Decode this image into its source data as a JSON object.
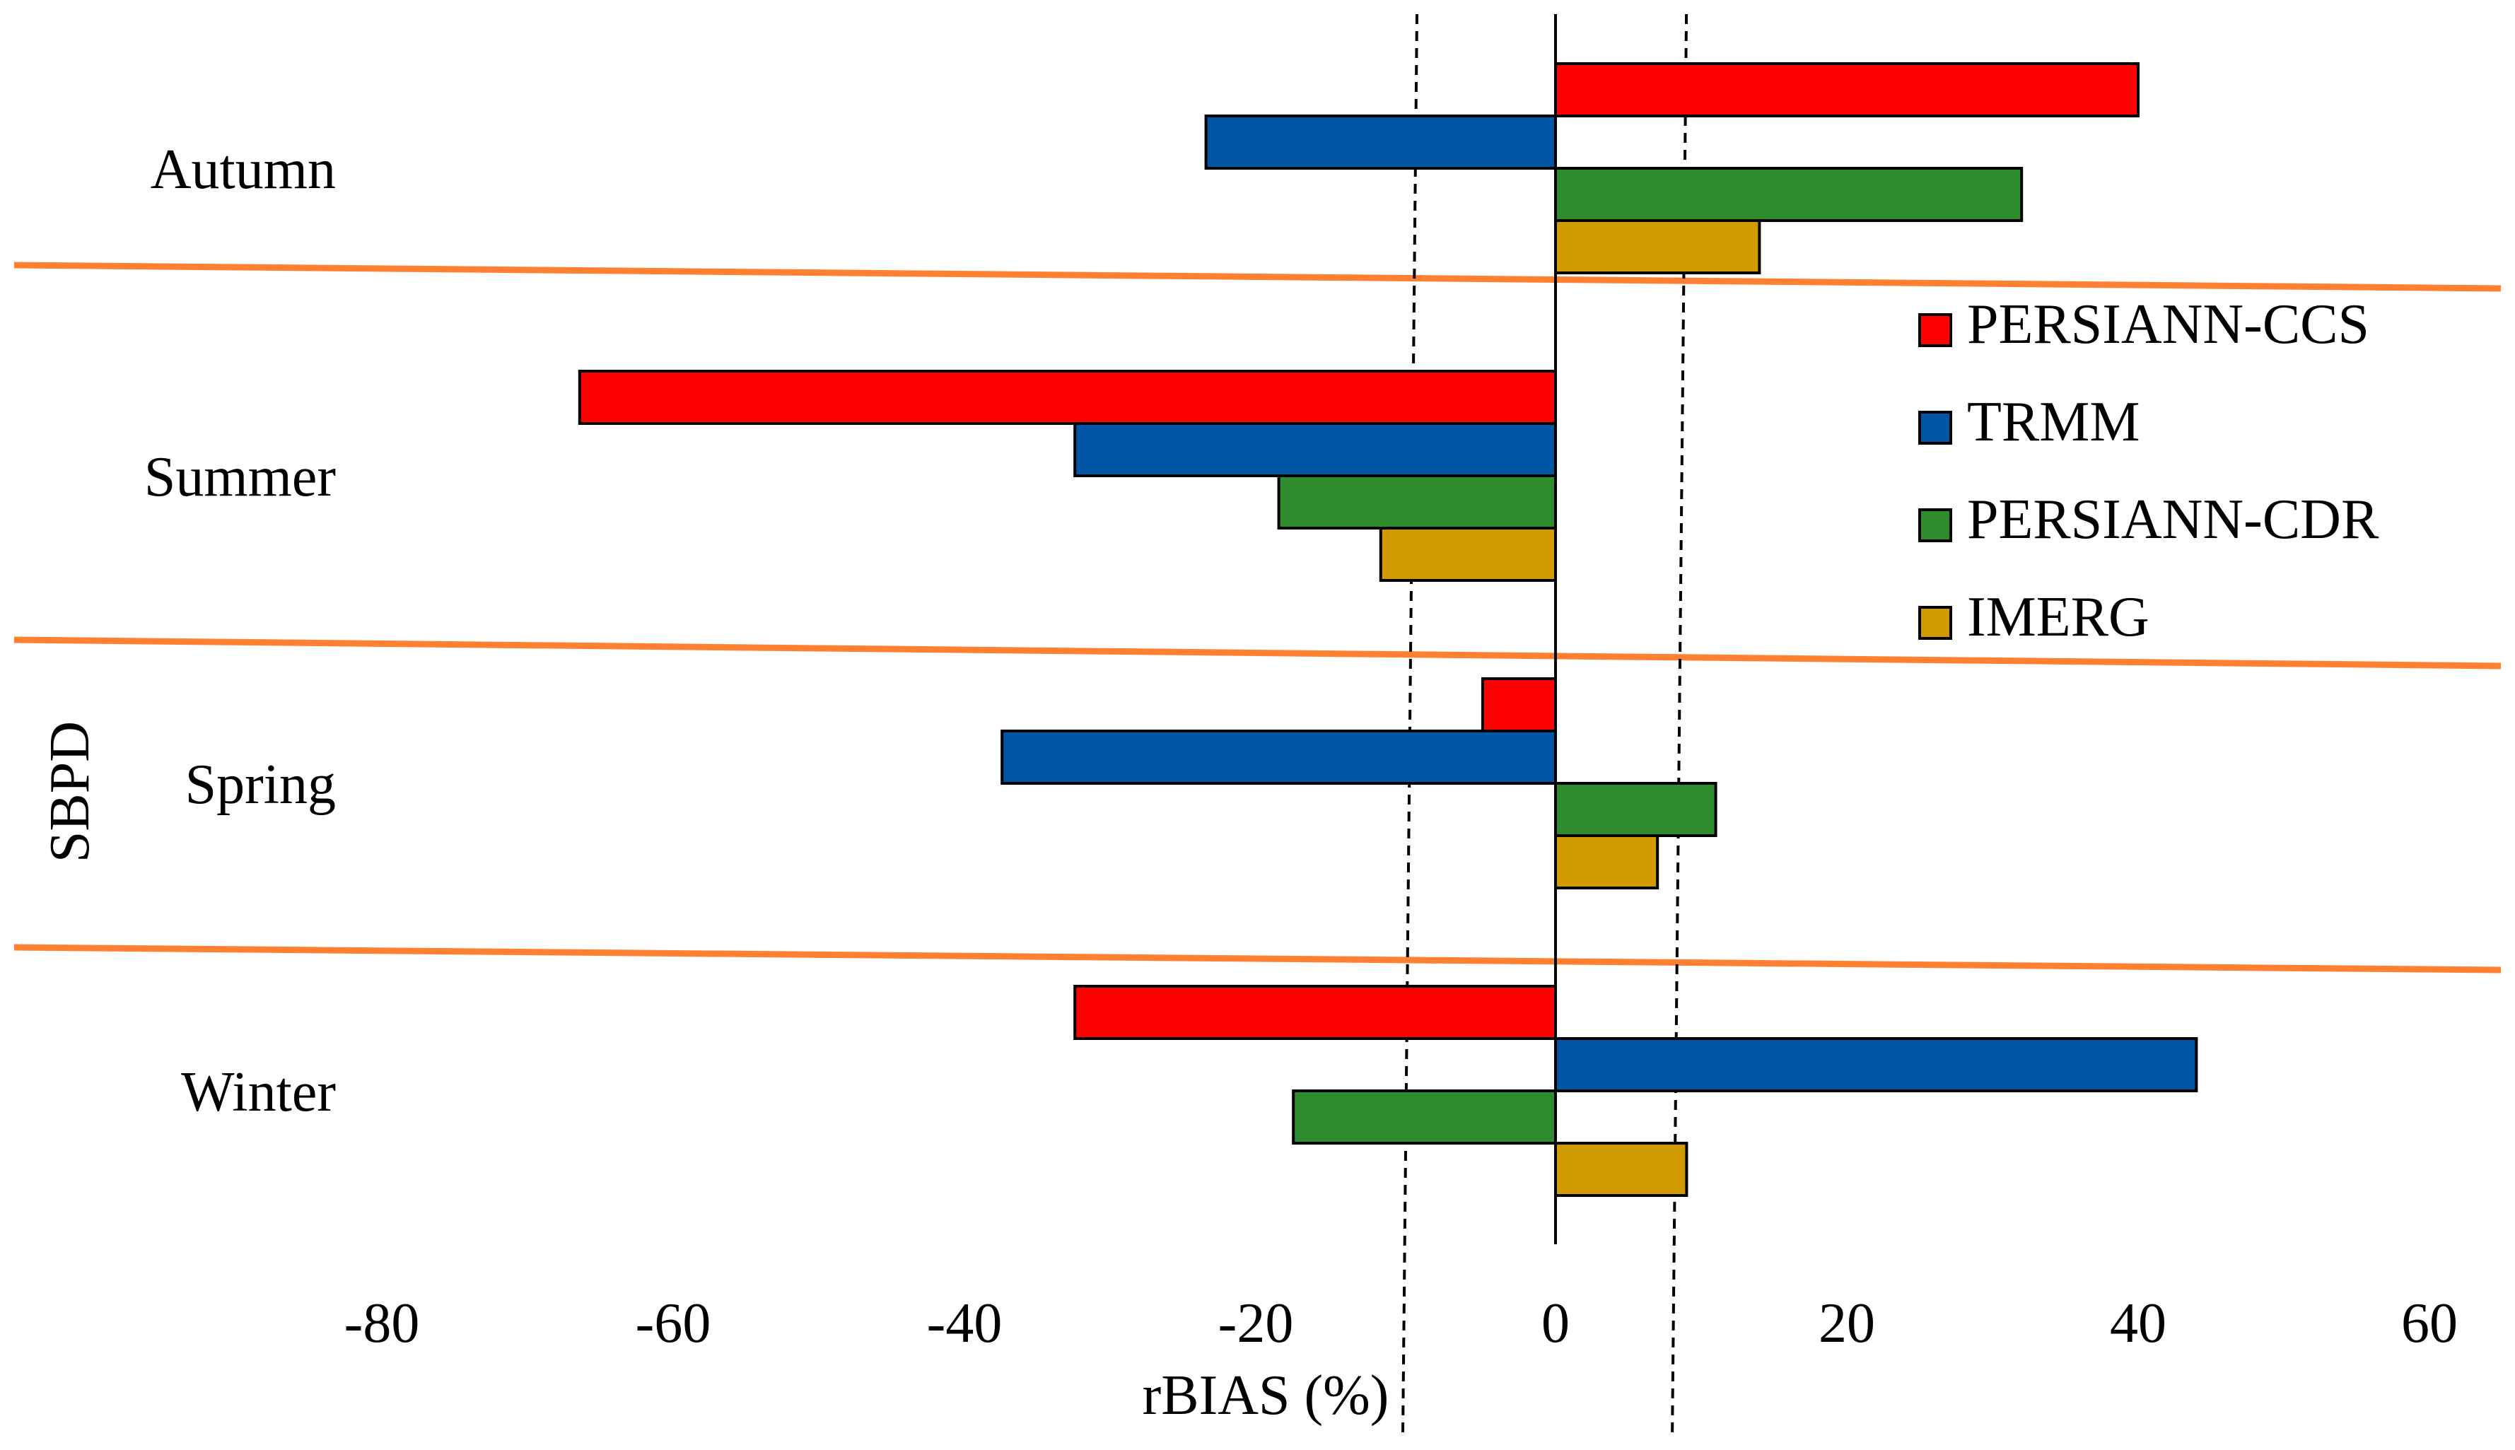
{
  "chart_data": {
    "type": "bar",
    "orientation": "horizontal",
    "title": "",
    "xlabel": "rBIAS (%)",
    "ylabel": "SBPD",
    "xlim": [
      -80,
      60
    ],
    "x_ticks": [
      -80,
      -60,
      -40,
      -20,
      0,
      20,
      40,
      60
    ],
    "x_tick_labels": [
      "-80",
      "-60",
      "-40",
      "-20",
      "0",
      "20",
      "40",
      "60"
    ],
    "categories": [
      "Autumn",
      "Summer",
      "Spring",
      "Winter"
    ],
    "series": [
      {
        "name": "PERSIANN-CCS",
        "color": "#ff0000",
        "values": [
          40,
          -67,
          -5,
          -33
        ]
      },
      {
        "name": "TRMM",
        "color": "#0055a4",
        "values": [
          -24,
          -33,
          -38,
          44
        ]
      },
      {
        "name": "PERSIANN-CDR",
        "color": "#2e8b2e",
        "values": [
          32,
          -19,
          11,
          -18
        ]
      },
      {
        "name": "IMERG",
        "color": "#d09a00",
        "values": [
          14,
          -12,
          7,
          9
        ]
      }
    ],
    "reference_lines": [
      -10,
      8.5
    ],
    "legend_position": "right",
    "separator_color": "#ff8030",
    "grid": false
  }
}
